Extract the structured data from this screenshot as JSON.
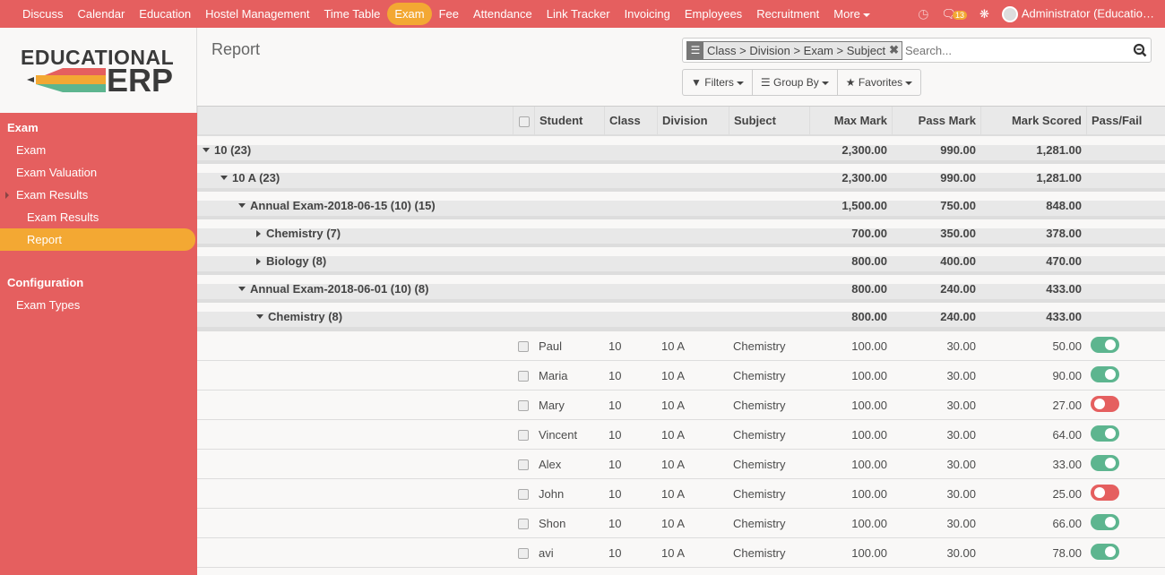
{
  "topbar": {
    "menu": [
      "Discuss",
      "Calendar",
      "Education",
      "Hostel Management",
      "Time Table",
      "Exam",
      "Fee",
      "Attendance",
      "Link Tracker",
      "Invoicing",
      "Employees",
      "Recruitment",
      "More"
    ],
    "active": "Exam",
    "message_count": "13",
    "user": "Administrator (Educatio…",
    "icons": [
      "clock-icon",
      "chat-icon",
      "bug-icon"
    ]
  },
  "logo": {
    "line1": "EDUCATIONAL",
    "line2": "ERP"
  },
  "sidebar": {
    "sections": [
      {
        "title": "Exam",
        "items": [
          {
            "label": "Exam"
          },
          {
            "label": "Exam Valuation"
          },
          {
            "label": "Exam Results",
            "expandable": true
          },
          {
            "label": "Exam Results",
            "sub": true
          },
          {
            "label": "Report",
            "sub": true,
            "active": true
          }
        ]
      },
      {
        "title": "Configuration",
        "items": [
          {
            "label": "Exam Types"
          }
        ]
      }
    ]
  },
  "page": {
    "title": "Report"
  },
  "search": {
    "facet": "Class > Division > Exam > Subject",
    "placeholder": "Search..."
  },
  "buttons": {
    "filters": "Filters",
    "group_by": "Group By",
    "favorites": "Favorites"
  },
  "colors": {
    "brand": "#e55f5f",
    "accent": "#f3a833",
    "pass": "#5db58f",
    "fail": "#e55f5f"
  },
  "table": {
    "columns": [
      "Student",
      "Class",
      "Division",
      "Subject",
      "Max Mark",
      "Pass Mark",
      "Mark Scored",
      "Pass/Fail"
    ],
    "groups": [
      {
        "label": "10 (23)",
        "level": 0,
        "open": true,
        "max": "2,300.00",
        "pass": "990.00",
        "scored": "1,281.00"
      },
      {
        "label": "10 A (23)",
        "level": 1,
        "open": true,
        "max": "2,300.00",
        "pass": "990.00",
        "scored": "1,281.00"
      },
      {
        "label": "Annual Exam-2018-06-15 (10) (15)",
        "level": 2,
        "open": true,
        "max": "1,500.00",
        "pass": "750.00",
        "scored": "848.00"
      },
      {
        "label": "Chemistry (7)",
        "level": 3,
        "open": false,
        "max": "700.00",
        "pass": "350.00",
        "scored": "378.00"
      },
      {
        "label": "Biology (8)",
        "level": 3,
        "open": false,
        "max": "800.00",
        "pass": "400.00",
        "scored": "470.00"
      },
      {
        "label": "Annual Exam-2018-06-01 (10) (8)",
        "level": 2,
        "open": true,
        "max": "800.00",
        "pass": "240.00",
        "scored": "433.00"
      },
      {
        "label": "Chemistry (8)",
        "level": 3,
        "open": true,
        "max": "800.00",
        "pass": "240.00",
        "scored": "433.00"
      }
    ],
    "rows": [
      {
        "student": "Paul",
        "class": "10",
        "division": "10 A",
        "subject": "Chemistry",
        "max": "100.00",
        "pass": "30.00",
        "scored": "50.00",
        "passed": true
      },
      {
        "student": "Maria",
        "class": "10",
        "division": "10 A",
        "subject": "Chemistry",
        "max": "100.00",
        "pass": "30.00",
        "scored": "90.00",
        "passed": true
      },
      {
        "student": "Mary",
        "class": "10",
        "division": "10 A",
        "subject": "Chemistry",
        "max": "100.00",
        "pass": "30.00",
        "scored": "27.00",
        "passed": false
      },
      {
        "student": "Vincent",
        "class": "10",
        "division": "10 A",
        "subject": "Chemistry",
        "max": "100.00",
        "pass": "30.00",
        "scored": "64.00",
        "passed": true
      },
      {
        "student": "Alex",
        "class": "10",
        "division": "10 A",
        "subject": "Chemistry",
        "max": "100.00",
        "pass": "30.00",
        "scored": "33.00",
        "passed": true
      },
      {
        "student": "John",
        "class": "10",
        "division": "10 A",
        "subject": "Chemistry",
        "max": "100.00",
        "pass": "30.00",
        "scored": "25.00",
        "passed": false
      },
      {
        "student": "Shon",
        "class": "10",
        "division": "10 A",
        "subject": "Chemistry",
        "max": "100.00",
        "pass": "30.00",
        "scored": "66.00",
        "passed": true
      },
      {
        "student": "avi",
        "class": "10",
        "division": "10 A",
        "subject": "Chemistry",
        "max": "100.00",
        "pass": "30.00",
        "scored": "78.00",
        "passed": true
      }
    ]
  }
}
